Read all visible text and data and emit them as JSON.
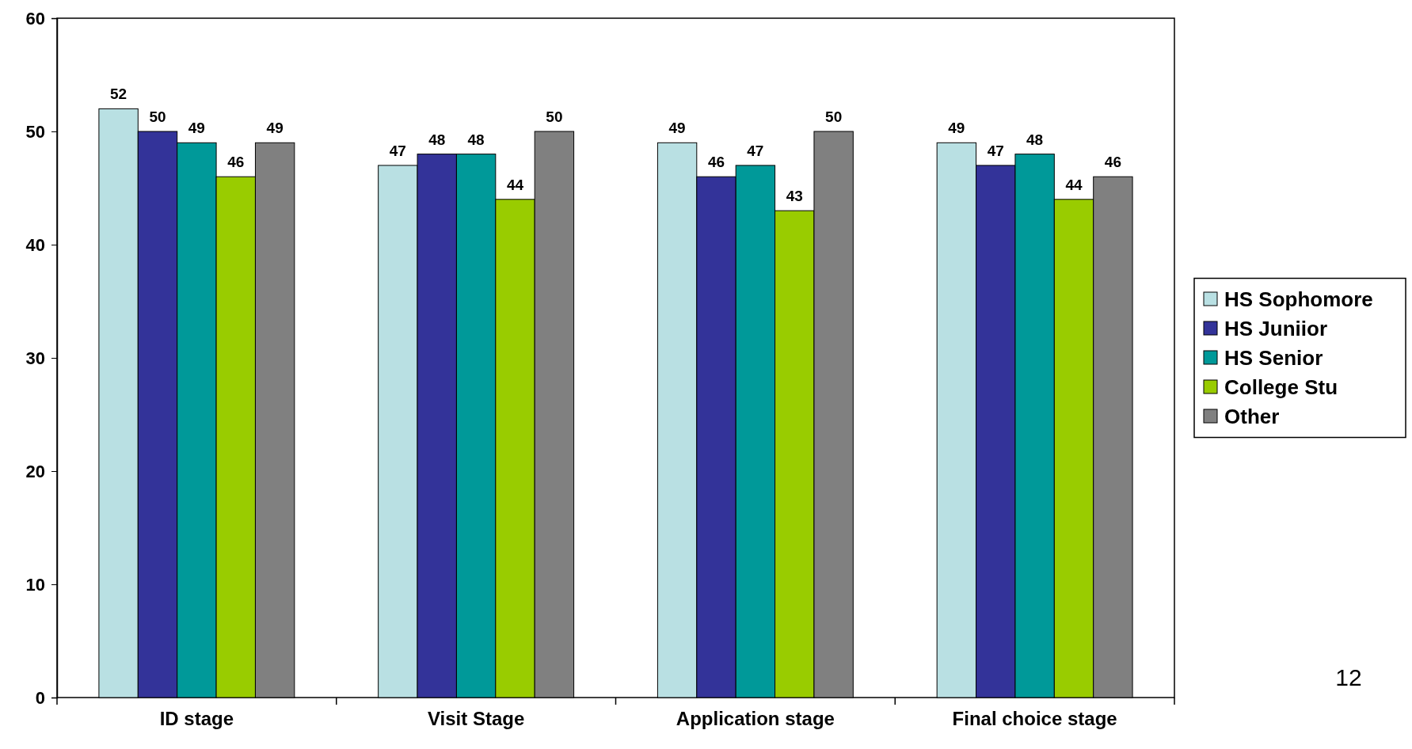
{
  "chart_data": {
    "type": "bar",
    "categories": [
      "ID stage",
      "Visit Stage",
      "Application stage",
      "Final choice stage"
    ],
    "series": [
      {
        "name": "HS Sophomore",
        "color": "#b9e0e3",
        "values": [
          52,
          47,
          49,
          49
        ]
      },
      {
        "name": "HS Juniior",
        "color": "#333399",
        "values": [
          50,
          48,
          46,
          47
        ]
      },
      {
        "name": "HS Senior",
        "color": "#009999",
        "values": [
          49,
          48,
          47,
          48
        ]
      },
      {
        "name": "College Stu",
        "color": "#99cc00",
        "values": [
          46,
          44,
          43,
          44
        ]
      },
      {
        "name": "Other",
        "color": "#808080",
        "values": [
          49,
          50,
          50,
          46
        ]
      }
    ],
    "ylim": [
      0,
      60
    ],
    "yticks": [
      0,
      10,
      20,
      30,
      40,
      50,
      60
    ],
    "data_labels": true,
    "grid": false,
    "legend": "right",
    "annotations": [
      "12"
    ]
  }
}
